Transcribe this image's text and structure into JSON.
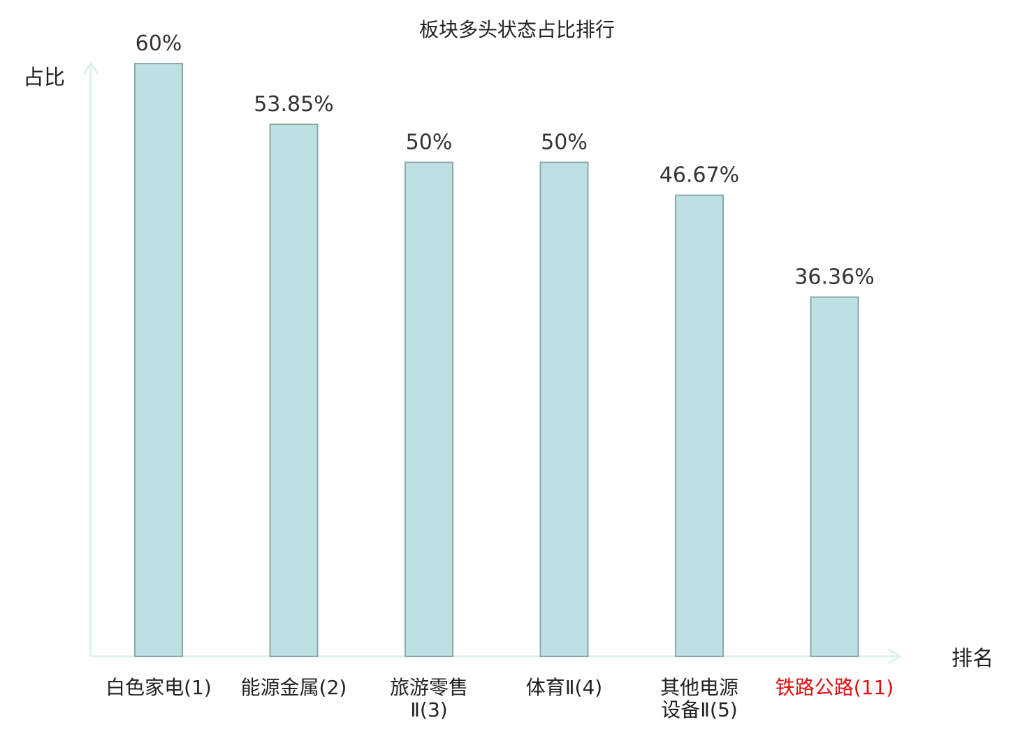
{
  "chart_data": {
    "type": "bar",
    "title": "板块多头状态占比排行",
    "ylabel": "占比",
    "xlabel": "排名",
    "ylim": [
      0,
      60
    ],
    "grid": false,
    "categories": [
      {
        "lines": [
          "白色家电(1)"
        ],
        "highlight": false
      },
      {
        "lines": [
          "能源金属(2)"
        ],
        "highlight": false
      },
      {
        "lines": [
          "旅游零售",
          "Ⅱ(3)"
        ],
        "highlight": false
      },
      {
        "lines": [
          "体育Ⅱ(4)"
        ],
        "highlight": false
      },
      {
        "lines": [
          "其他电源",
          "设备Ⅱ(5)"
        ],
        "highlight": false
      },
      {
        "lines": [
          "铁路公路(11)"
        ],
        "highlight": true
      }
    ],
    "values": [
      60,
      53.85,
      50,
      50,
      46.67,
      36.36
    ],
    "value_labels": [
      "60%",
      "53.85%",
      "50%",
      "50%",
      "46.67%",
      "36.36%"
    ],
    "colors": {
      "bar_fill": "#bde0e2",
      "bar_stroke": "#8aa9ab",
      "axis": "#dff1ee",
      "text": "#222222",
      "value_text": "#333333",
      "highlight_text": "#e01010"
    }
  }
}
